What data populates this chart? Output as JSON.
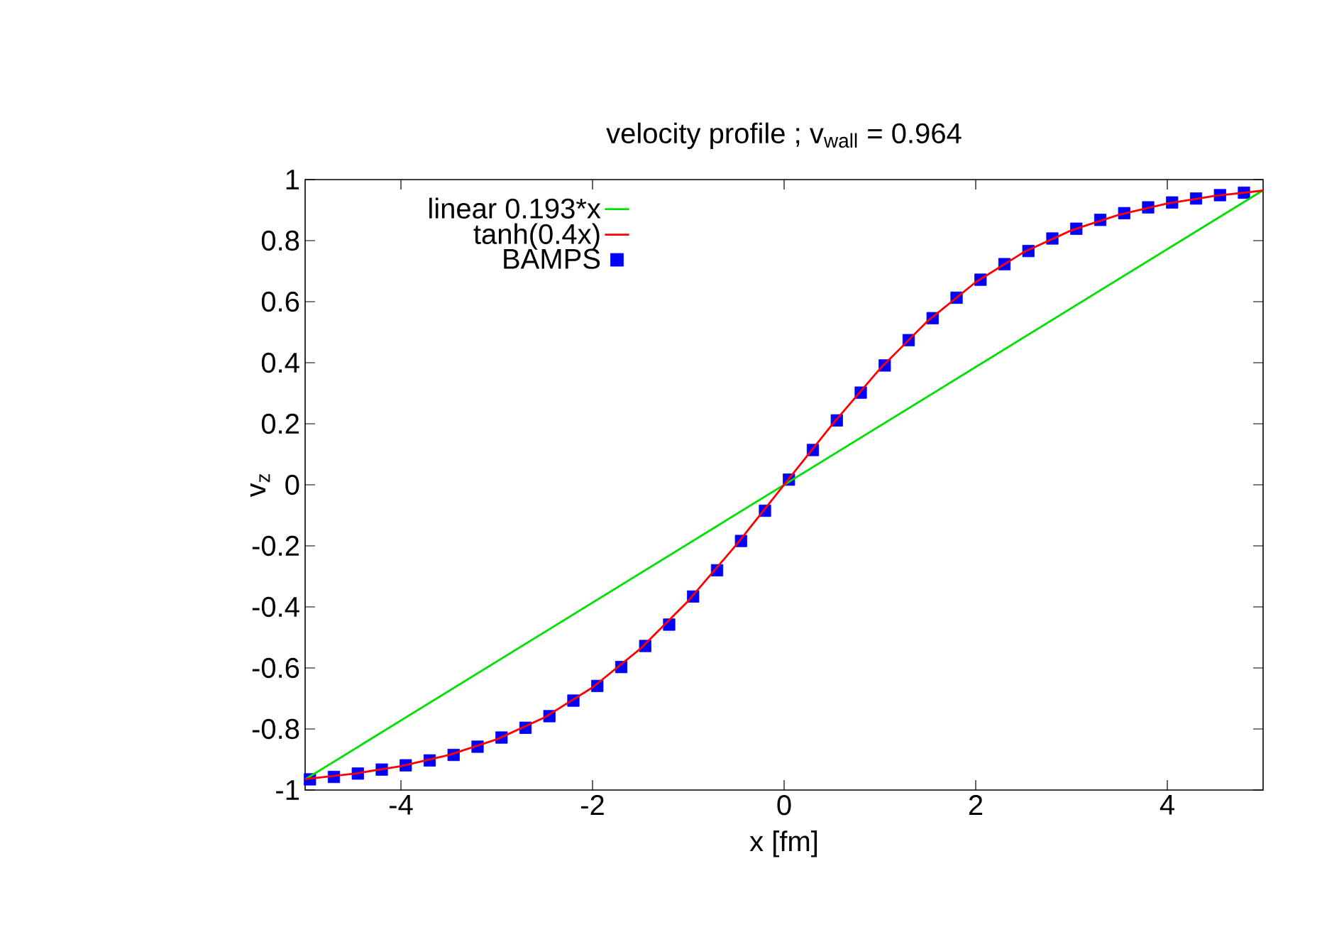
{
  "chart_data": {
    "type": "line",
    "title": "velocity profile ; v$_{wall}$ = 0.964",
    "xlabel": "x [fm]",
    "ylabel": "v$_{z}$",
    "xlim": [
      -5,
      5
    ],
    "ylim": [
      -1,
      1
    ],
    "xticks": [
      -4,
      -2,
      0,
      2,
      4
    ],
    "yticks": [
      -1,
      -0.8,
      -0.6,
      -0.4,
      -0.2,
      0,
      0.2,
      0.4,
      0.6,
      0.8,
      1
    ],
    "legend": "top left",
    "grid": false,
    "series": [
      {
        "name": "linear 0.193*x",
        "color": "#00e000",
        "marker": "none",
        "x": [
          -5,
          5
        ],
        "values": [
          -0.965,
          0.965
        ]
      },
      {
        "name": "tanh(0.4x)",
        "color": "#ff0000",
        "marker": "none",
        "x": [
          -5,
          -4.5,
          -4,
          -3.5,
          -3,
          -2.5,
          -2,
          -1.5,
          -1,
          -0.5,
          0,
          0.5,
          1,
          1.5,
          2,
          2.5,
          3,
          3.5,
          4,
          4.5,
          5
        ],
        "values": [
          -0.964,
          -0.947,
          -0.922,
          -0.885,
          -0.834,
          -0.762,
          -0.664,
          -0.537,
          -0.38,
          -0.197,
          0,
          0.197,
          0.38,
          0.537,
          0.664,
          0.762,
          0.834,
          0.885,
          0.922,
          0.947,
          0.964
        ]
      },
      {
        "name": "BAMPS",
        "type": "scatter",
        "color": "#0000ff",
        "marker": "square",
        "x": [
          -4.95,
          -4.7,
          -4.45,
          -4.2,
          -3.95,
          -3.7,
          -3.45,
          -3.2,
          -2.95,
          -2.7,
          -2.45,
          -2.2,
          -1.95,
          -1.7,
          -1.45,
          -1.2,
          -0.95,
          -0.7,
          -0.45,
          -0.2,
          0.05,
          0.3,
          0.55,
          0.8,
          1.05,
          1.3,
          1.55,
          1.8,
          2.05,
          2.3,
          2.55,
          2.8,
          3.05,
          3.3,
          3.55,
          3.8,
          4.05,
          4.3,
          4.55,
          4.8
        ],
        "values": [
          -0.965,
          -0.957,
          -0.946,
          -0.933,
          -0.919,
          -0.903,
          -0.885,
          -0.858,
          -0.828,
          -0.796,
          -0.758,
          -0.707,
          -0.659,
          -0.597,
          -0.528,
          -0.458,
          -0.366,
          -0.28,
          -0.184,
          -0.085,
          0.017,
          0.114,
          0.211,
          0.302,
          0.391,
          0.474,
          0.546,
          0.613,
          0.672,
          0.723,
          0.766,
          0.807,
          0.839,
          0.868,
          0.89,
          0.909,
          0.925,
          0.938,
          0.949,
          0.957
        ]
      }
    ]
  }
}
